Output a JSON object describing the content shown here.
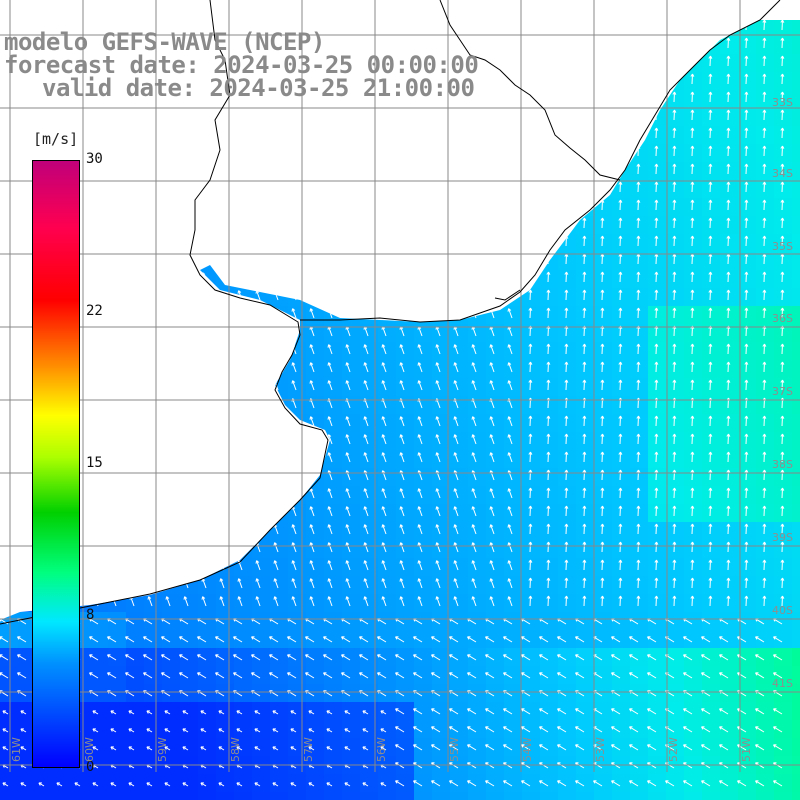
{
  "title": {
    "line1": "modelo GEFS-WAVE (NCEP)",
    "line2": "forecast date: 2024-03-25 00:00:00",
    "line3": "valid date: 2024-03-25 21:00:00"
  },
  "colorbar": {
    "unit": "[m/s]",
    "ticks": [
      "30",
      "22",
      "15",
      "8",
      "0"
    ],
    "tick_values": [
      30,
      22,
      15,
      8,
      0
    ],
    "colors": [
      "#0000ff",
      "#0090ff",
      "#00e8ff",
      "#00ff80",
      "#00d000",
      "#aaff00",
      "#ffff00",
      "#ff9000",
      "#ff0000",
      "#ff0050",
      "#c0007a"
    ]
  },
  "map": {
    "lat_labels": [
      "33S",
      "34S",
      "35S",
      "36S",
      "37S",
      "38S",
      "39S",
      "40S",
      "41S"
    ],
    "lon_labels": [
      "61W",
      "60W",
      "59W",
      "58W",
      "57W",
      "56W",
      "55W",
      "54W",
      "53W",
      "52W",
      "51W"
    ],
    "land_color": "#ffffff",
    "coastline_color": "#000000",
    "grid_color": "#888888",
    "arrow_color": "#ffffff"
  }
}
